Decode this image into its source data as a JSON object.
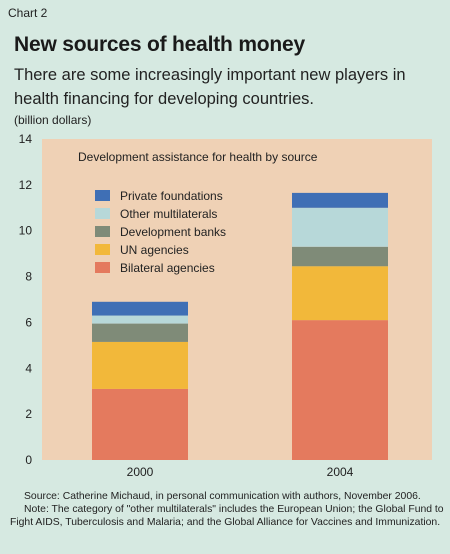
{
  "header": {
    "chart_number": "Chart 2",
    "title": "New sources of health money",
    "subtitle": "There are some increasingly important new players in health financing for developing countries.",
    "unit": "(billion dollars)"
  },
  "footer": {
    "source": "Source: Catherine Michaud, in personal communication with authors, November 2006.",
    "note": "Note: The category of \"other multilaterals\" includes the European Union; the Global Fund to Fight AIDS, Tuberculosis and Malaria; and the Global Alliance for Vaccines and Immunization."
  },
  "colors": {
    "page_background": "#d6e9e1",
    "plot_background": "#efd1b5",
    "Bilateral agencies": "#e47a5e",
    "UN agencies": "#f2b83a",
    "Development banks": "#7f8b78",
    "Other multilaterals": "#b7d8d9",
    "Private foundations": "#3f6fb5"
  },
  "chart_data": {
    "type": "bar",
    "stacked": true,
    "title": "Development assistance for health by source",
    "categories": [
      "2000",
      "2004"
    ],
    "series": [
      {
        "name": "Bilateral agencies",
        "values": [
          3.1,
          6.1
        ]
      },
      {
        "name": "UN agencies",
        "values": [
          2.05,
          2.35
        ]
      },
      {
        "name": "Development banks",
        "values": [
          0.8,
          0.85
        ]
      },
      {
        "name": "Other multilaterals",
        "values": [
          0.35,
          1.7
        ]
      },
      {
        "name": "Private foundations",
        "values": [
          0.6,
          0.65
        ]
      }
    ],
    "legend_order": [
      "Private foundations",
      "Other multilaterals",
      "Development banks",
      "UN agencies",
      "Bilateral agencies"
    ],
    "legend_position": "top-left",
    "ylim": [
      0,
      14
    ],
    "yticks": [
      0,
      2,
      4,
      6,
      8,
      10,
      12,
      14
    ],
    "grid": false
  }
}
